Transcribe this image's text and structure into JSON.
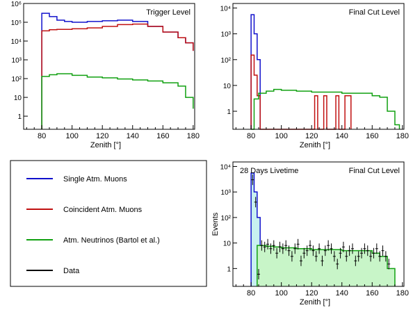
{
  "colors": {
    "single": "#1010cc",
    "coincident": "#c01010",
    "neutrino": "#10a010",
    "data": "#000000",
    "neutrino_fill": "#c8f5c8",
    "single_fill": "#c8f0f0"
  },
  "legend": {
    "entries": [
      {
        "label": "Single Atm. Muons",
        "color_key": "single"
      },
      {
        "label": "Coincident Atm. Muons",
        "color_key": "coincident"
      },
      {
        "label": "Atm. Neutrinos (Bartol et al.)",
        "color_key": "neutrino"
      },
      {
        "label": "Data",
        "color_key": "data"
      }
    ]
  },
  "chart_data": [
    {
      "type": "line",
      "id": "trigger",
      "title": "Trigger Level",
      "xlabel": "Zenith [°]",
      "ylabel": "",
      "xlim": [
        68,
        181
      ],
      "ylim": [
        0.2,
        1000000
      ],
      "log_y": true,
      "x_ticks": [
        "80",
        "100",
        "120",
        "140",
        "160",
        "180"
      ],
      "x_tick_values": [
        80,
        100,
        120,
        140,
        160,
        180
      ],
      "y_ticks": [
        "1",
        "10",
        "10²",
        "10³",
        "10⁴",
        "10⁵",
        "10⁶"
      ],
      "y_tick_values": [
        1,
        10,
        100,
        1000,
        10000,
        100000,
        1000000
      ],
      "series": [
        {
          "key": "single",
          "x": [
            80,
            85,
            90,
            95,
            100,
            110,
            120,
            130,
            140,
            150,
            160,
            170,
            175,
            180
          ],
          "y": [
            300000,
            200000,
            130000,
            110000,
            100000,
            110000,
            120000,
            130000,
            110000,
            60000,
            30000,
            15000,
            8000,
            3000
          ]
        },
        {
          "key": "coincident",
          "x": [
            80,
            85,
            90,
            100,
            110,
            120,
            130,
            140,
            150,
            160,
            170,
            175,
            180
          ],
          "y": [
            35000,
            40000,
            42000,
            45000,
            50000,
            60000,
            75000,
            80000,
            60000,
            30000,
            15000,
            8000,
            3000
          ]
        },
        {
          "key": "neutrino",
          "x": [
            80,
            85,
            90,
            100,
            110,
            120,
            130,
            140,
            150,
            160,
            170,
            175,
            180
          ],
          "y": [
            130,
            160,
            180,
            150,
            120,
            110,
            95,
            85,
            75,
            60,
            40,
            10,
            2.5
          ]
        }
      ]
    },
    {
      "type": "line",
      "id": "final",
      "title": "Final Cut Level",
      "xlabel": "Zenith [°]",
      "ylabel": "",
      "xlim": [
        68,
        181
      ],
      "ylim": [
        0.2,
        15000
      ],
      "log_y": true,
      "x_ticks": [
        "80",
        "100",
        "120",
        "140",
        "160",
        "180"
      ],
      "x_tick_values": [
        80,
        100,
        120,
        140,
        160,
        180
      ],
      "y_ticks": [
        "1",
        "10",
        "10²",
        "10³",
        "10⁴"
      ],
      "y_tick_values": [
        1,
        10,
        100,
        1000,
        10000
      ],
      "series": [
        {
          "key": "single",
          "x": [
            80,
            82,
            84,
            86
          ],
          "y": [
            5500,
            1000,
            100,
            0.2
          ]
        },
        {
          "key": "coincident",
          "x": [
            80,
            82,
            84,
            86,
            122,
            124,
            128,
            130,
            136,
            138,
            142,
            146
          ],
          "y": [
            150,
            25,
            4,
            0.2,
            4,
            0.2,
            4,
            0.2,
            4,
            0.2,
            4,
            0.2
          ]
        },
        {
          "key": "neutrino",
          "x": [
            80,
            82,
            85,
            90,
            95,
            100,
            110,
            120,
            130,
            140,
            150,
            160,
            165,
            170,
            175,
            178
          ],
          "y": [
            0.2,
            3,
            5,
            6,
            7,
            6.5,
            6,
            5.5,
            5.5,
            5,
            5,
            4,
            3.5,
            1,
            0.3,
            0.2
          ]
        }
      ]
    },
    {
      "type": "line",
      "id": "data",
      "title": "Final Cut Level",
      "subtitle": "28 Days Livetime",
      "xlabel": "Zenith [°]",
      "ylabel": "Events",
      "xlim": [
        68,
        181
      ],
      "ylim": [
        0.2,
        15000
      ],
      "log_y": true,
      "x_ticks": [
        "80",
        "100",
        "120",
        "140",
        "160",
        "180"
      ],
      "x_tick_values": [
        80,
        100,
        120,
        140,
        160,
        180
      ],
      "y_ticks": [
        "1",
        "10",
        "10²",
        "10³",
        "10⁴"
      ],
      "y_tick_values": [
        1,
        10,
        100,
        1000,
        10000
      ],
      "series": [
        {
          "key": "single",
          "x": [
            80,
            82,
            84,
            86
          ],
          "y": [
            5500,
            1000,
            100,
            0.2
          ],
          "fill": true
        },
        {
          "key": "neutrino",
          "x": [
            84,
            86,
            90,
            95,
            100,
            110,
            120,
            130,
            140,
            150,
            160,
            165,
            170,
            175
          ],
          "y": [
            8,
            8,
            7.5,
            7,
            6.5,
            6,
            5.5,
            5.5,
            5,
            5,
            4,
            3,
            1,
            0.2
          ],
          "fill": true
        },
        {
          "key": "data",
          "type": "scatter",
          "x": [
            81,
            83,
            85,
            87,
            89,
            91,
            93,
            95,
            97,
            99,
            101,
            103,
            105,
            107,
            109,
            111,
            113,
            115,
            117,
            119,
            121,
            123,
            125,
            127,
            129,
            131,
            133,
            135,
            137,
            139,
            141,
            143,
            145,
            147,
            149,
            151,
            153,
            155,
            157,
            159,
            161,
            163,
            165,
            167,
            169,
            171
          ],
          "y": [
            3000,
            400,
            0.6,
            8,
            7,
            9,
            6,
            8,
            4,
            7,
            6,
            8,
            5,
            3,
            6,
            9,
            2,
            4,
            5,
            8,
            5,
            3,
            6,
            2,
            5,
            8,
            6,
            3,
            1.5,
            4,
            7,
            3,
            5,
            6,
            2,
            3,
            4,
            6,
            5,
            3,
            4,
            6,
            3,
            5,
            3,
            1.5
          ]
        }
      ]
    }
  ]
}
